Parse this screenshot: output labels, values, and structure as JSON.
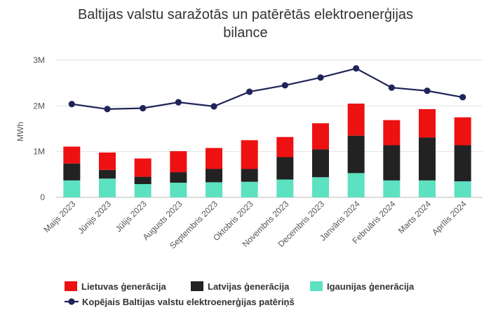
{
  "chart_data": {
    "type": "bar",
    "stacked": true,
    "title_lines": [
      "Baltijas valstu saražotās un patērētās elektroenerģijas",
      "bilance"
    ],
    "ylabel": "MWh",
    "ylim": [
      0,
      3000000
    ],
    "yticks": [
      {
        "value": 0,
        "label": "0"
      },
      {
        "value": 1000000,
        "label": "1M"
      },
      {
        "value": 2000000,
        "label": "2M"
      },
      {
        "value": 3000000,
        "label": "3M"
      }
    ],
    "categories": [
      "Maijs 2023",
      "Jūnijs 2023",
      "Jūlijs 2023",
      "Augusts 2023",
      "Septembris 2023",
      "Oktobris 2023",
      "Novembris 2023",
      "Decembris 2023",
      "Janvāris 2024",
      "Februāris 2024",
      "Marts 2024",
      "Aprīlis 2024"
    ],
    "series": [
      {
        "name": "Igaunijas ģenerācija",
        "color": "#5ce1c1",
        "values": [
          370000,
          410000,
          290000,
          320000,
          330000,
          340000,
          390000,
          440000,
          530000,
          370000,
          370000,
          350000
        ]
      },
      {
        "name": "Latvijas ģenerācija",
        "color": "#222222",
        "values": [
          370000,
          190000,
          160000,
          230000,
          290000,
          280000,
          490000,
          610000,
          820000,
          770000,
          940000,
          790000
        ]
      },
      {
        "name": "Lietuvas ģenerācija",
        "color": "#ee1111",
        "values": [
          370000,
          380000,
          400000,
          460000,
          460000,
          630000,
          440000,
          570000,
          700000,
          550000,
          620000,
          610000
        ]
      }
    ],
    "line_series": {
      "name": "Kopējais Baltijas valstu elektroenerģijas patēriņš",
      "color": "#1f2459",
      "values": [
        2040000,
        1930000,
        1950000,
        2080000,
        1990000,
        2310000,
        2450000,
        2620000,
        2820000,
        2400000,
        2330000,
        2190000
      ]
    },
    "legend": {
      "position": "bottom",
      "row1": [
        "Lietuvas ģenerācija",
        "Latvijas ģenerācija",
        "Igaunijas ģenerācija"
      ],
      "row2": [
        "Kopējais Baltijas valstu elektroenerģijas patēriņš"
      ]
    }
  }
}
